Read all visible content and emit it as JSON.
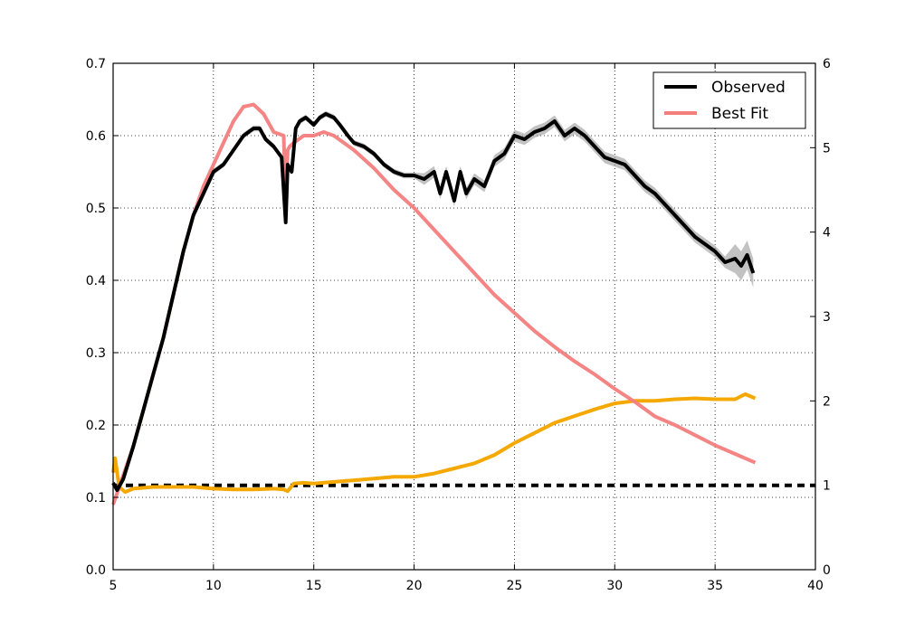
{
  "chart_data": {
    "type": "line",
    "title": "",
    "xlabel": "",
    "ylabel": "",
    "xlim": [
      5,
      40
    ],
    "ylim": [
      0,
      0.7
    ],
    "y2lim": [
      0,
      6
    ],
    "grid": true,
    "legend_position": "top-right",
    "x_ticks": [
      5,
      10,
      15,
      20,
      25,
      30,
      35,
      40
    ],
    "y_ticks": [
      0.0,
      0.1,
      0.2,
      0.3,
      0.4,
      0.5,
      0.6,
      0.7
    ],
    "y2_ticks": [
      0,
      1,
      2,
      3,
      4,
      5,
      6
    ],
    "series": [
      {
        "name": "Observed",
        "color": "#000000",
        "axis": "left",
        "x": [
          5.0,
          5.2,
          5.5,
          6.0,
          6.5,
          7.0,
          7.5,
          8.0,
          8.5,
          9.0,
          9.5,
          10.0,
          10.5,
          11.0,
          11.5,
          12.0,
          12.3,
          12.6,
          13.0,
          13.4,
          13.6,
          13.7,
          13.9,
          14.1,
          14.3,
          14.6,
          15.0,
          15.3,
          15.6,
          16.0,
          16.3,
          16.7,
          17.0,
          17.5,
          18.0,
          18.5,
          19.0,
          19.5,
          20.0,
          20.5,
          21.0,
          21.3,
          21.6,
          22.0,
          22.3,
          22.6,
          23.0,
          23.5,
          24.0,
          24.5,
          25.0,
          25.5,
          26.0,
          26.5,
          27.0,
          27.5,
          28.0,
          28.5,
          29.0,
          29.5,
          30.0,
          30.5,
          31.0,
          31.5,
          32.0,
          32.5,
          33.0,
          33.5,
          34.0,
          34.5,
          35.0,
          35.5,
          36.0,
          36.3,
          36.6,
          36.9
        ],
        "values": [
          0.12,
          0.11,
          0.125,
          0.17,
          0.22,
          0.27,
          0.32,
          0.38,
          0.44,
          0.49,
          0.52,
          0.55,
          0.56,
          0.58,
          0.6,
          0.61,
          0.61,
          0.595,
          0.585,
          0.57,
          0.48,
          0.56,
          0.55,
          0.61,
          0.62,
          0.625,
          0.615,
          0.625,
          0.63,
          0.625,
          0.615,
          0.6,
          0.59,
          0.585,
          0.575,
          0.56,
          0.55,
          0.545,
          0.545,
          0.54,
          0.55,
          0.52,
          0.55,
          0.51,
          0.55,
          0.52,
          0.54,
          0.53,
          0.565,
          0.575,
          0.6,
          0.595,
          0.605,
          0.61,
          0.62,
          0.6,
          0.61,
          0.6,
          0.585,
          0.57,
          0.565,
          0.56,
          0.545,
          0.53,
          0.52,
          0.505,
          0.49,
          0.475,
          0.46,
          0.45,
          0.44,
          0.425,
          0.43,
          0.42,
          0.435,
          0.41
        ]
      },
      {
        "name": "Best Fit",
        "color": "#f47d7d",
        "axis": "left",
        "x": [
          5.0,
          5.5,
          6.0,
          6.5,
          7.0,
          7.5,
          8.0,
          8.5,
          9.0,
          9.5,
          10.0,
          10.5,
          11.0,
          11.5,
          12.0,
          12.5,
          13.0,
          13.5,
          13.6,
          13.7,
          13.8,
          14.0,
          14.5,
          15.0,
          15.5,
          16.0,
          17.0,
          18.0,
          19.0,
          20.0,
          21.0,
          22.0,
          23.0,
          24.0,
          25.0,
          26.0,
          27.0,
          28.0,
          29.0,
          30.0,
          31.0,
          32.0,
          33.0,
          34.0,
          35.0,
          36.0,
          37.0
        ],
        "values": [
          0.09,
          0.13,
          0.17,
          0.22,
          0.27,
          0.32,
          0.38,
          0.44,
          0.49,
          0.53,
          0.56,
          0.59,
          0.62,
          0.64,
          0.643,
          0.63,
          0.605,
          0.6,
          0.5,
          0.58,
          0.585,
          0.59,
          0.6,
          0.6,
          0.605,
          0.6,
          0.58,
          0.555,
          0.525,
          0.5,
          0.47,
          0.44,
          0.41,
          0.38,
          0.355,
          0.33,
          0.308,
          0.288,
          0.27,
          0.25,
          0.232,
          0.212,
          0.2,
          0.186,
          0.172,
          0.16,
          0.148
        ]
      },
      {
        "name": "",
        "color": "#f5a800",
        "axis": "right",
        "x": [
          5.0,
          5.1,
          5.3,
          5.6,
          6.0,
          7.0,
          8.0,
          9.0,
          10.0,
          11.0,
          12.0,
          13.0,
          13.5,
          13.7,
          14.0,
          14.5,
          15.0,
          16.0,
          17.0,
          18.0,
          19.0,
          20.0,
          21.0,
          22.0,
          23.0,
          24.0,
          25.0,
          26.0,
          27.0,
          28.0,
          29.0,
          30.0,
          31.0,
          32.0,
          33.0,
          34.0,
          35.0,
          36.0,
          36.5,
          37.0
        ],
        "values": [
          1.15,
          1.32,
          0.98,
          0.92,
          0.96,
          0.98,
          0.98,
          0.98,
          0.96,
          0.95,
          0.95,
          0.96,
          0.95,
          0.93,
          1.02,
          1.03,
          1.02,
          1.04,
          1.06,
          1.08,
          1.1,
          1.1,
          1.14,
          1.2,
          1.26,
          1.36,
          1.5,
          1.62,
          1.74,
          1.82,
          1.9,
          1.97,
          2.0,
          2.0,
          2.02,
          2.03,
          2.02,
          2.02,
          2.08,
          2.03
        ]
      },
      {
        "name": "",
        "color": "#000000",
        "axis": "right",
        "style": "dashed",
        "x": [
          5.0,
          40.0
        ],
        "values": [
          1.0,
          1.0
        ]
      }
    ]
  }
}
